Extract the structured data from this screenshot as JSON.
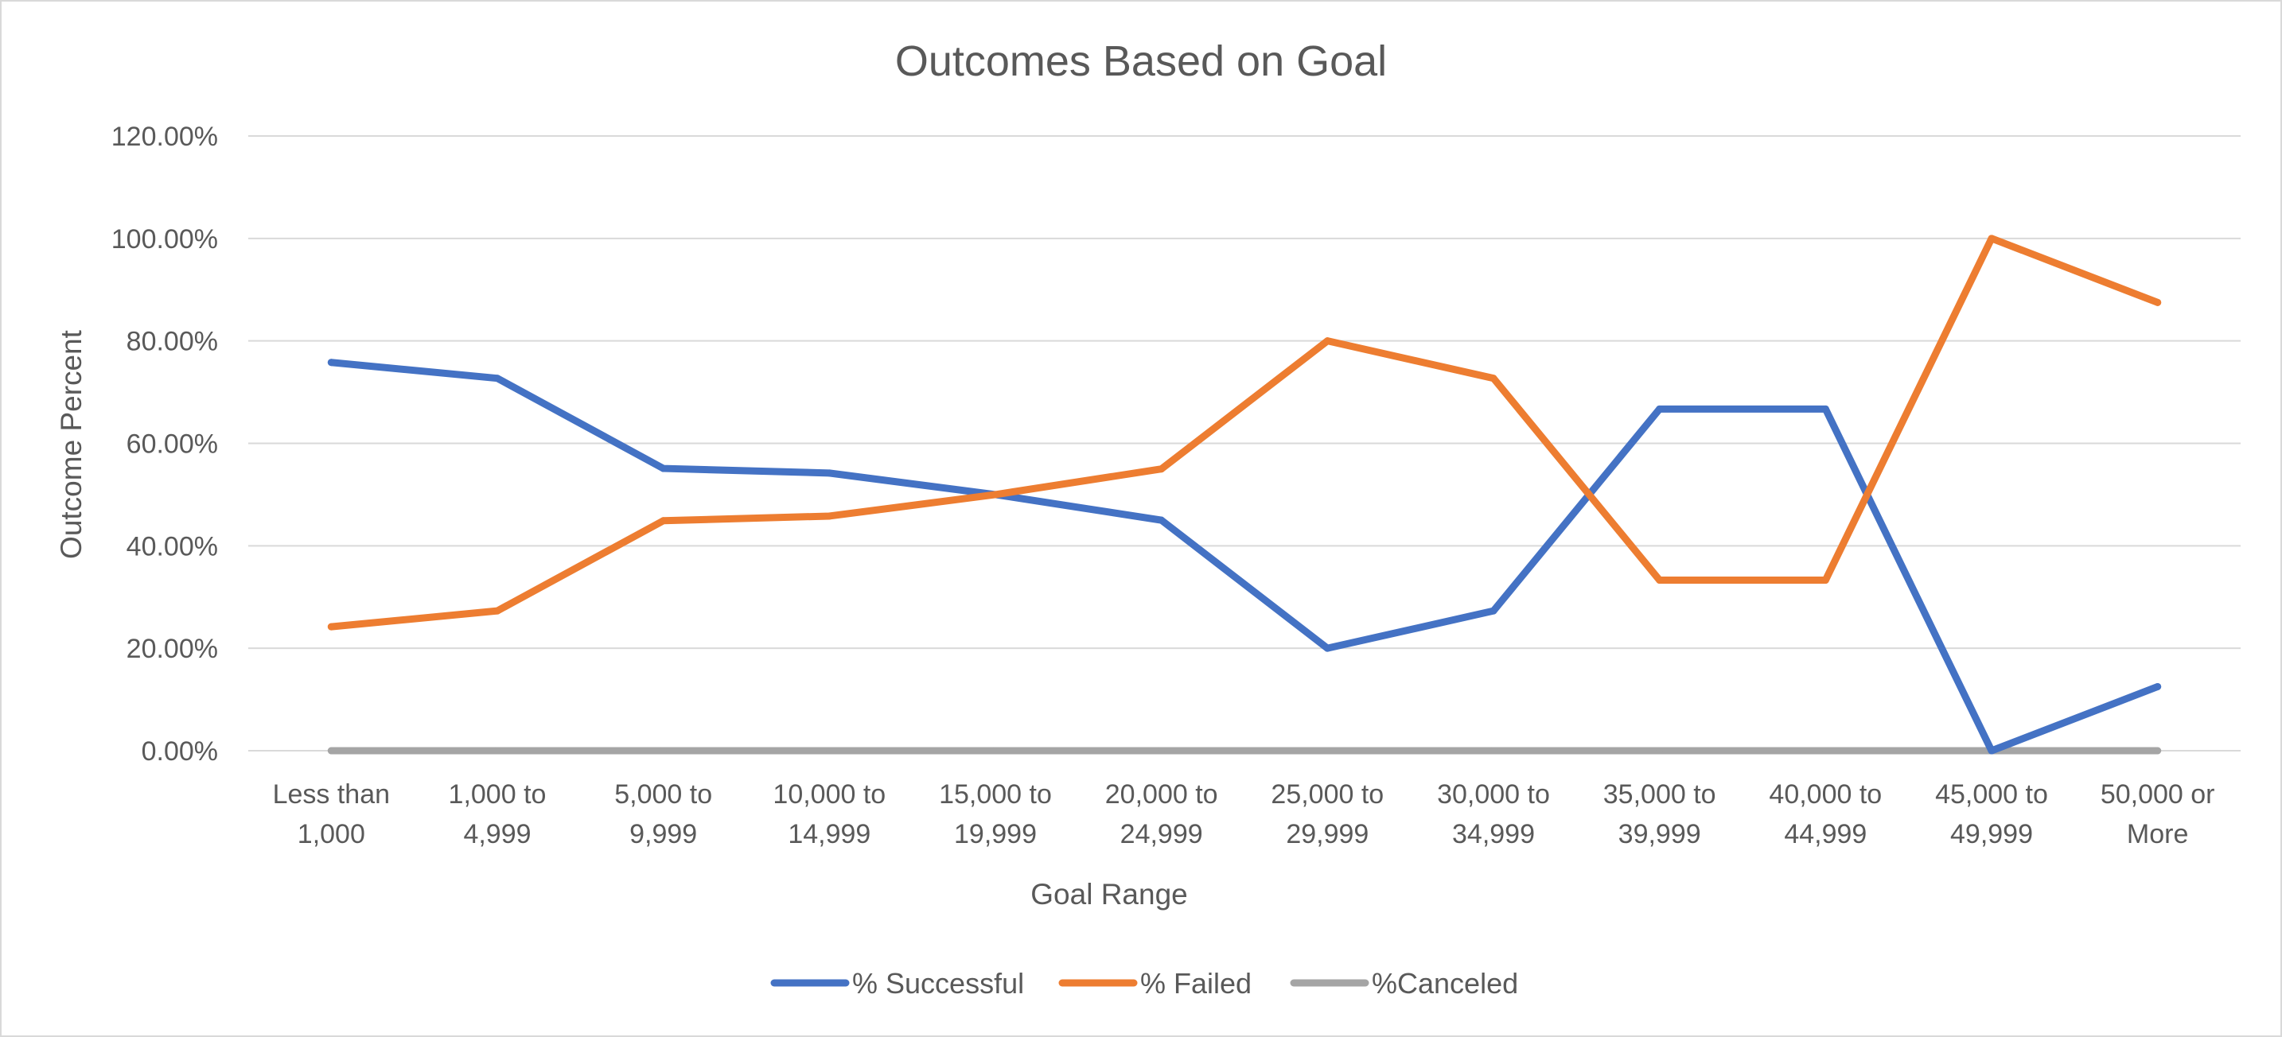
{
  "chart_data": {
    "type": "line",
    "title": "Outcomes Based on Goal",
    "xlabel": "Goal Range",
    "ylabel": "Outcome Percent",
    "ylim": [
      0,
      120
    ],
    "y_tick_labels": [
      "0.00%",
      "20.00%",
      "40.00%",
      "60.00%",
      "80.00%",
      "100.00%",
      "120.00%"
    ],
    "y_tick_values": [
      0,
      20,
      40,
      60,
      80,
      100,
      120
    ],
    "categories": [
      [
        "Less than",
        "1,000"
      ],
      [
        "1,000 to",
        "4,999"
      ],
      [
        "5,000 to",
        "9,999"
      ],
      [
        "10,000 to",
        "14,999"
      ],
      [
        "15,000 to",
        "19,999"
      ],
      [
        "20,000 to",
        "24,999"
      ],
      [
        "25,000 to",
        "29,999"
      ],
      [
        "30,000 to",
        "34,999"
      ],
      [
        "35,000 to",
        "39,999"
      ],
      [
        "40,000 to",
        "44,999"
      ],
      [
        "45,000 to",
        "49,999"
      ],
      [
        "50,000 or",
        "More"
      ]
    ],
    "series": [
      {
        "name": "% Successful",
        "color": "#4472c4",
        "values": [
          75.8,
          72.7,
          55.1,
          54.2,
          50.0,
          45.0,
          20.0,
          27.3,
          66.7,
          66.7,
          0.0,
          12.5
        ]
      },
      {
        "name": "% Failed",
        "color": "#ed7d31",
        "values": [
          24.2,
          27.3,
          44.9,
          45.8,
          50.0,
          55.0,
          80.0,
          72.7,
          33.3,
          33.3,
          100.0,
          87.5
        ]
      },
      {
        "name": "%Canceled",
        "color": "#a5a5a5",
        "values": [
          0,
          0,
          0,
          0,
          0,
          0,
          0,
          0,
          0,
          0,
          0,
          0
        ]
      }
    ],
    "grid": true,
    "legend_position": "bottom"
  }
}
